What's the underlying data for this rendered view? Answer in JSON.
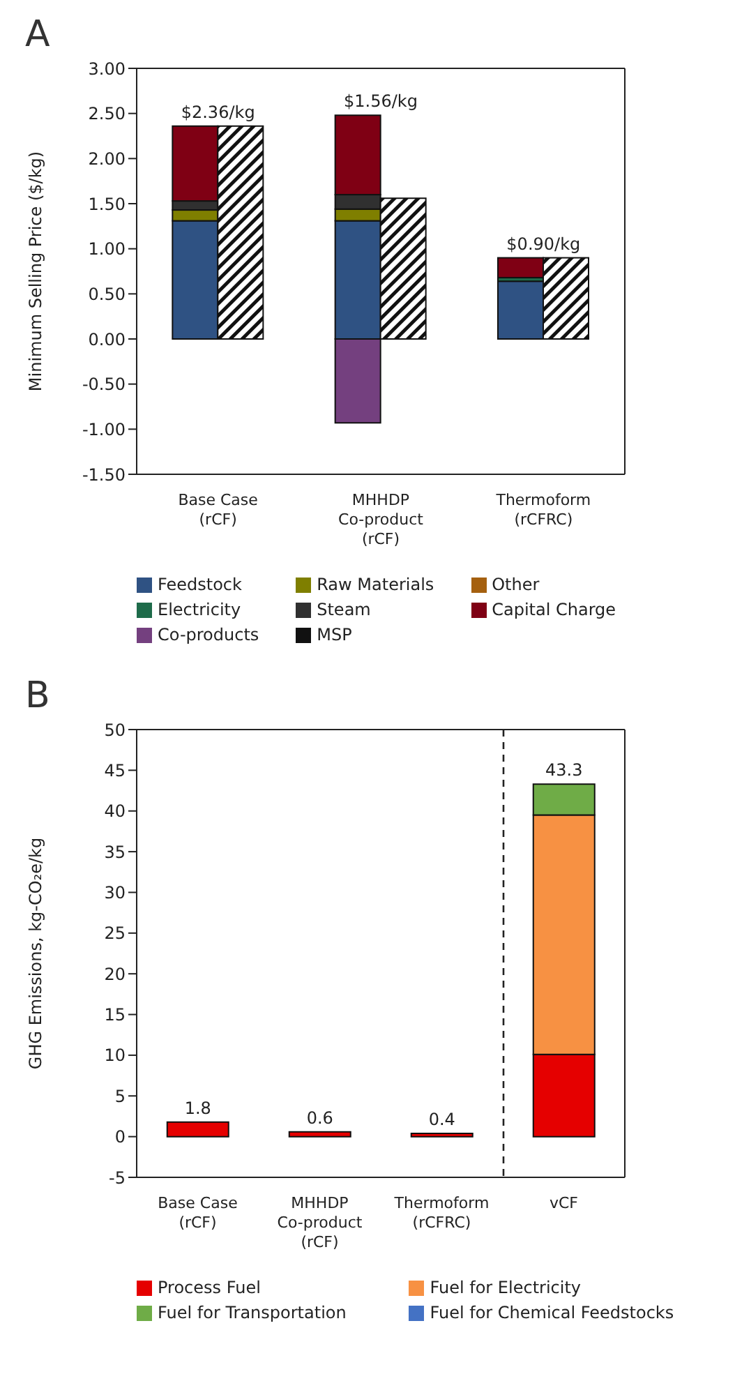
{
  "chart_data": [
    {
      "type": "bar",
      "title": "A",
      "ylabel": "Minimum Selling Price ($/kg)",
      "categories": [
        "Base Case (rCF)",
        "MHHDP Co-product (rCF)",
        "Thermoform (rCFRC)"
      ],
      "ylim": [
        -1.5,
        3
      ],
      "yticks": [
        {
          "value": 3,
          "label": "3.00"
        },
        {
          "value": 2.5,
          "label": "2.50"
        },
        {
          "value": 2,
          "label": "2.00"
        },
        {
          "value": 1.5,
          "label": "1.50"
        },
        {
          "value": 1,
          "label": "1.00"
        },
        {
          "value": 0.5,
          "label": "0.50"
        },
        {
          "value": 0,
          "label": "0.00"
        },
        {
          "value": -0.5,
          "label": "-0.50"
        },
        {
          "value": -1,
          "label": "-1.00"
        },
        {
          "value": -1.5,
          "label": "-1.50"
        }
      ],
      "legend": "bottom",
      "grid": false,
      "series": [
        {
          "name": "Feedstock",
          "color": "#2f5283",
          "values": [
            1.31,
            1.31,
            0.64
          ],
          "base": [
            0,
            0,
            0
          ]
        },
        {
          "name": "Raw Materials",
          "color": "#7f7f00",
          "values": [
            0.12,
            0.13,
            null
          ],
          "base": [
            1.31,
            1.31,
            null
          ]
        },
        {
          "name": "Other",
          "color": "#a5600f",
          "values": [
            null,
            null,
            null
          ],
          "base": [
            null,
            null,
            null
          ]
        },
        {
          "name": "Electricity",
          "color": "#1e6b4a",
          "values": [
            null,
            null,
            0.04
          ],
          "base": [
            null,
            null,
            0.64
          ]
        },
        {
          "name": "Steam",
          "color": "#303030",
          "values": [
            0.1,
            0.16,
            null
          ],
          "base": [
            1.43,
            1.44,
            null
          ]
        },
        {
          "name": "Capital Charge",
          "color": "#7f0014",
          "values": [
            0.83,
            0.88,
            0.22
          ],
          "base": [
            1.53,
            1.6,
            0.68
          ]
        },
        {
          "name": "Co-products",
          "color": "#74407f",
          "values": [
            null,
            -0.93,
            null
          ],
          "base": [
            null,
            0,
            null
          ]
        },
        {
          "name": "MSP",
          "color": "#111111",
          "values": [
            2.36,
            1.56,
            0.9
          ]
        }
      ],
      "annotations": [
        {
          "text": "$2.36/kg",
          "x": "Base Case (rCF)",
          "y": 2.36
        },
        {
          "text": "$1.56/kg",
          "x": "MHHDP Co-product (rCF)",
          "y": 2.48
        },
        {
          "text": "$0.90/kg",
          "x": "Thermoform (rCFRC)",
          "y": 0.9
        }
      ]
    },
    {
      "type": "bar",
      "title": "B",
      "ylabel": "GHG Emissions, kg-CO₂e/kg",
      "categories": [
        "Base Case (rCF)",
        "MHHDP Co-product (rCF)",
        "Thermoform (rCFRC)",
        "vCF"
      ],
      "stacked": true,
      "ylim": [
        -5,
        50
      ],
      "yticks": [
        -5,
        0,
        5,
        10,
        15,
        20,
        25,
        30,
        35,
        40,
        45,
        50
      ],
      "legend": "bottom",
      "grid": false,
      "totals": [
        "1.8",
        "0.6",
        "0.4",
        "43.3"
      ],
      "series": [
        {
          "name": "Process Fuel",
          "color": "#e50000",
          "values": [
            1.8,
            0.6,
            0.4,
            10.1
          ]
        },
        {
          "name": "Fuel for Electricity",
          "color": "#f79143",
          "values": [
            0,
            0,
            0,
            29.4
          ]
        },
        {
          "name": "Fuel for Transportation",
          "color": "#6fac47",
          "values": [
            0,
            0,
            0,
            3.8
          ]
        },
        {
          "name": "Fuel for Chemical Feedstocks",
          "color": "#4472c4",
          "values": [
            0,
            0,
            0,
            0
          ]
        }
      ]
    }
  ]
}
